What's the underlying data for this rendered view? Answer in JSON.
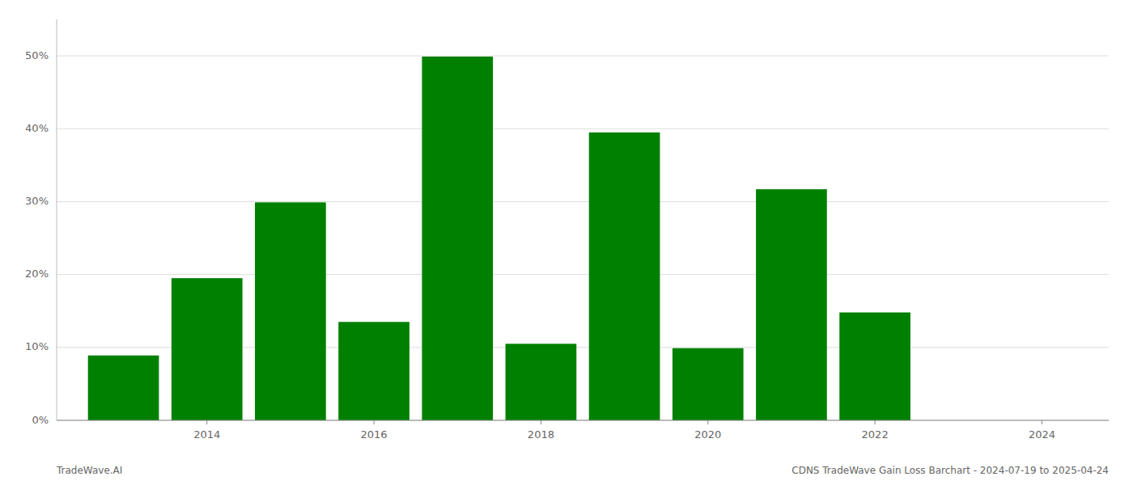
{
  "chart_data": {
    "type": "bar",
    "x": [
      2013,
      2014,
      2015,
      2016,
      2017,
      2018,
      2019,
      2020,
      2021,
      2022,
      2023
    ],
    "values": [
      8.9,
      19.5,
      29.9,
      13.5,
      49.9,
      10.5,
      39.5,
      9.9,
      31.7,
      14.8,
      0.0
    ],
    "color": "#008000",
    "xlim": [
      2012.2,
      2024.8
    ],
    "xticks": [
      2014,
      2016,
      2018,
      2020,
      2022,
      2024
    ],
    "ylim": [
      0,
      55
    ],
    "yticks": [
      {
        "value": 0,
        "label": "0%"
      },
      {
        "value": 10,
        "label": "10%"
      },
      {
        "value": 20,
        "label": "20%"
      },
      {
        "value": 30,
        "label": "30%"
      },
      {
        "value": 40,
        "label": "40%"
      },
      {
        "value": 50,
        "label": "50%"
      }
    ],
    "grid": true,
    "annotations": [
      "TradeWave.AI",
      "CDNS TradeWave Gain Loss Barchart - 2024-07-19 to 2025-04-24"
    ]
  }
}
